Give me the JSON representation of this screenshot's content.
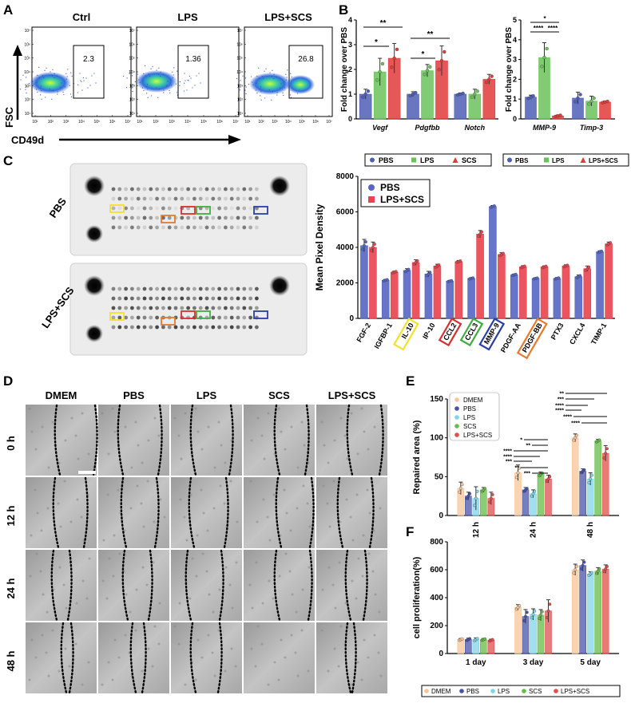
{
  "colors": {
    "pbs": "#4f5fb5",
    "lps": "#6ac25a",
    "scs_triangle": "#e23b3b",
    "red_series": "#e8434e",
    "blue_series": "#5666c2",
    "dmem": "#f6c59a",
    "pbs_e": "#4a52a8",
    "lps_e": "#7fd4e8",
    "scs_e": "#66bb4a",
    "lps_scs_e": "#e24d4d",
    "flow_dot": "#2a52c9"
  },
  "panelA": {
    "letter": "A",
    "plot_titles": [
      "Ctrl",
      "LPS",
      "LPS+SCS"
    ],
    "gate_values": [
      "2.3",
      "1.36",
      "26.8"
    ],
    "x_axis_label": "CD49d",
    "y_axis_label": "FSC",
    "tick_labels_y": [
      "10⁷",
      "10⁶",
      "10⁵",
      "10⁴",
      "10³",
      "10²",
      "10¹"
    ],
    "tick_labels_x": [
      "10¹",
      "10²",
      "10³",
      "10⁴",
      "10⁵",
      "10⁶",
      "10⁷"
    ]
  },
  "panelB": {
    "letter": "B"
  },
  "panelC": {
    "letter": "C",
    "blot_labels": [
      "PBS",
      "LPS+SCS"
    ]
  },
  "panelD": {
    "letter": "D",
    "columns": [
      "DMEM",
      "PBS",
      "LPS",
      "SCS",
      "LPS+SCS"
    ],
    "rows": [
      "0 h",
      "12 h",
      "24 h",
      "48 h"
    ]
  },
  "panelE": {
    "letter": "E"
  },
  "panelF": {
    "letter": "F"
  },
  "chart_data": [
    {
      "id": "B-left",
      "type": "bar",
      "ylabel": "Fold change over PBS",
      "ylim": [
        0,
        4
      ],
      "yticks": [
        "0",
        "1",
        "2",
        "3",
        "4"
      ],
      "categories": [
        "Vegf",
        "Pdgfbb",
        "Notch"
      ],
      "series": [
        {
          "name": "PBS",
          "values": [
            1.0,
            1.0,
            1.0
          ],
          "err": [
            0.2,
            0.1,
            0.05
          ]
        },
        {
          "name": "LPS",
          "values": [
            1.9,
            1.95,
            1.0
          ],
          "err": [
            0.55,
            0.25,
            0.2
          ]
        },
        {
          "name": "SCS",
          "values": [
            2.45,
            2.35,
            1.6
          ],
          "err": [
            0.6,
            0.6,
            0.2
          ]
        }
      ],
      "significance": [
        "**",
        "*",
        "**",
        "*"
      ],
      "legend_position": "bottom"
    },
    {
      "id": "B-right",
      "type": "bar",
      "ylabel": "Fold change over PBS",
      "ylim": [
        0,
        5
      ],
      "yticks": [
        "0",
        "1",
        "2",
        "3",
        "4",
        "5"
      ],
      "categories": [
        "MMP-9",
        "Timp-3"
      ],
      "series": [
        {
          "name": "PBS",
          "values": [
            1.1,
            1.05
          ],
          "err": [
            0.1,
            0.3
          ]
        },
        {
          "name": "LPS",
          "values": [
            3.1,
            0.9
          ],
          "err": [
            0.75,
            0.25
          ]
        },
        {
          "name": "LPS+SCS",
          "values": [
            0.15,
            0.85
          ],
          "err": [
            0.05,
            0.05
          ]
        }
      ],
      "significance": [
        "*",
        "****",
        "****"
      ],
      "legend_position": "bottom"
    },
    {
      "id": "C-bar",
      "type": "bar",
      "ylabel": "Mean Pixel Density",
      "ylim": [
        0,
        8000
      ],
      "yticks": [
        "0",
        "2000",
        "4000",
        "6000",
        "8000"
      ],
      "categories": [
        "FGF-2",
        "IGFBP-1",
        "IL-10",
        "IP-10",
        "CCL2",
        "CCL3",
        "MMP-9",
        "PDGF-AA",
        "PDGF-BB",
        "PTX3",
        "CXCL4",
        "TIMP-1"
      ],
      "highlight_colors": {
        "IL-10": "#f2e22a",
        "CCL2": "#d83030",
        "CCL3": "#3fae3f",
        "MMP-9": "#2a3fa5",
        "PDGF-BB": "#e77a2c"
      },
      "series": [
        {
          "name": "PBS",
          "values": [
            4100,
            2150,
            2700,
            2500,
            2100,
            2250,
            6300,
            2450,
            2250,
            2250,
            2350,
            3750
          ],
          "err": [
            350,
            50,
            100,
            150,
            40,
            50,
            60,
            50,
            40,
            50,
            90,
            60
          ]
        },
        {
          "name": "LPS+SCS",
          "values": [
            4000,
            2600,
            3150,
            2950,
            3200,
            4750,
            3600,
            2900,
            2900,
            2950,
            2800,
            4200
          ],
          "err": [
            300,
            60,
            150,
            100,
            60,
            200,
            100,
            70,
            60,
            70,
            150,
            100
          ]
        }
      ],
      "legend_position": "top-left"
    },
    {
      "id": "E",
      "type": "bar",
      "ylabel": "Repaired area (%)",
      "ylim": [
        0,
        150
      ],
      "yticks": [
        "0",
        "50",
        "100",
        "150"
      ],
      "categories": [
        "12 h",
        "24 h",
        "48 h"
      ],
      "series": [
        {
          "name": "DMEM",
          "values": [
            35,
            55,
            100
          ],
          "err": [
            8,
            10,
            5
          ]
        },
        {
          "name": "PBS",
          "values": [
            25,
            33,
            57
          ],
          "err": [
            5,
            3,
            3
          ]
        },
        {
          "name": "LPS",
          "values": [
            22,
            28,
            47
          ],
          "err": [
            15,
            5,
            8
          ]
        },
        {
          "name": "SCS",
          "values": [
            33,
            53,
            96
          ],
          "err": [
            3,
            3,
            2
          ]
        },
        {
          "name": "LPS+SCS",
          "values": [
            22,
            47,
            80
          ],
          "err": [
            8,
            5,
            10
          ]
        }
      ],
      "significance": [
        "****",
        "****",
        "***",
        "*",
        "**",
        "**",
        "***",
        "**",
        "***",
        "****",
        "****",
        "****",
        "****"
      ],
      "legend_position": "top-left"
    },
    {
      "id": "F",
      "type": "bar",
      "ylabel": "cell proliferation(%)",
      "ylim": [
        0,
        800
      ],
      "yticks": [
        "0",
        "200",
        "400",
        "600",
        "800"
      ],
      "categories": [
        "1 day",
        "3 day",
        "5 day"
      ],
      "series": [
        {
          "name": "DMEM",
          "values": [
            100,
            330,
            600
          ],
          "err": [
            8,
            20,
            40
          ]
        },
        {
          "name": "PBS",
          "values": [
            100,
            265,
            630
          ],
          "err": [
            10,
            50,
            40
          ]
        },
        {
          "name": "LPS",
          "values": [
            100,
            280,
            570
          ],
          "err": [
            12,
            40,
            15
          ]
        },
        {
          "name": "SCS",
          "values": [
            100,
            275,
            590
          ],
          "err": [
            8,
            40,
            25
          ]
        },
        {
          "name": "LPS+SCS",
          "values": [
            95,
            305,
            605
          ],
          "err": [
            8,
            80,
            30
          ]
        }
      ],
      "legend_position": "bottom"
    }
  ]
}
